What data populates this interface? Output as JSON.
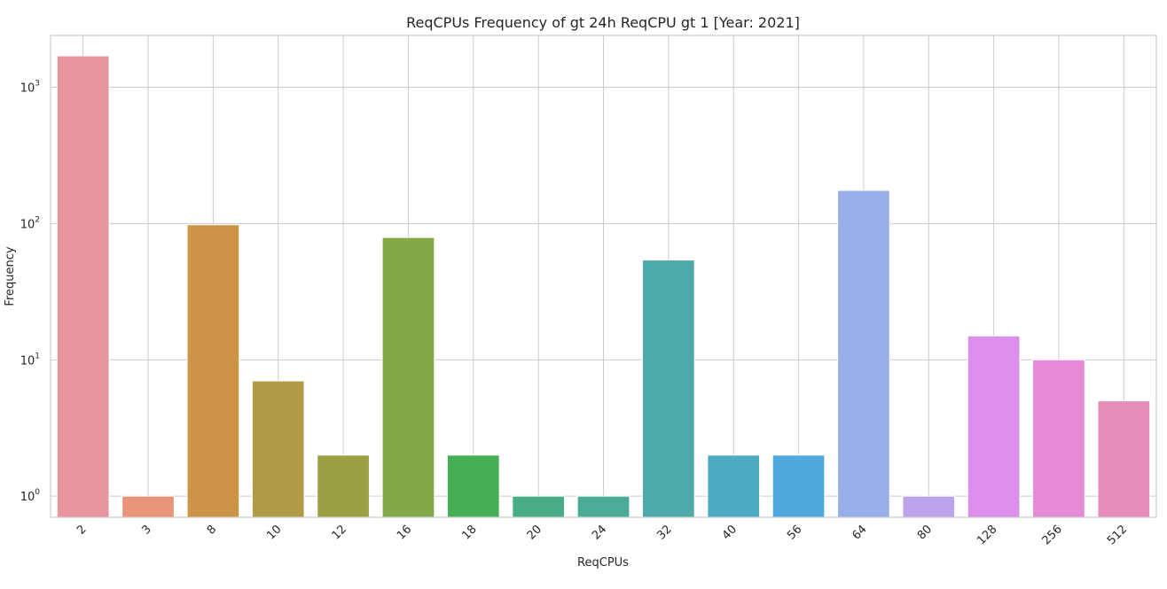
{
  "chart_data": {
    "type": "bar",
    "title": "ReqCPUs Frequency of gt 24h ReqCPU gt 1 [Year: 2021]",
    "xlabel": "ReqCPUs",
    "ylabel": "Frequency",
    "yscale": "log",
    "ylim": [
      0.7,
      2400
    ],
    "grid": true,
    "categories": [
      "2",
      "3",
      "8",
      "10",
      "12",
      "16",
      "18",
      "20",
      "24",
      "32",
      "40",
      "56",
      "64",
      "80",
      "128",
      "256",
      "512"
    ],
    "values": [
      1700,
      1,
      98,
      7,
      2,
      79,
      2,
      1,
      1,
      54,
      2,
      2,
      175,
      1,
      15,
      10,
      5
    ],
    "colors": [
      "#e8959f",
      "#e8957a",
      "#cd9447",
      "#b29b47",
      "#9ba045",
      "#82a847",
      "#46af56",
      "#48ad86",
      "#4aac96",
      "#4daaab",
      "#4eabc4",
      "#50a9dc",
      "#98aee8",
      "#bca4ec",
      "#db8fea",
      "#e68ad6",
      "#e68cb9"
    ],
    "yticks": [
      {
        "value": 1,
        "base": "10",
        "exp": "0"
      },
      {
        "value": 10,
        "base": "10",
        "exp": "1"
      },
      {
        "value": 100,
        "base": "10",
        "exp": "2"
      },
      {
        "value": 1000,
        "base": "10",
        "exp": "3"
      }
    ]
  }
}
